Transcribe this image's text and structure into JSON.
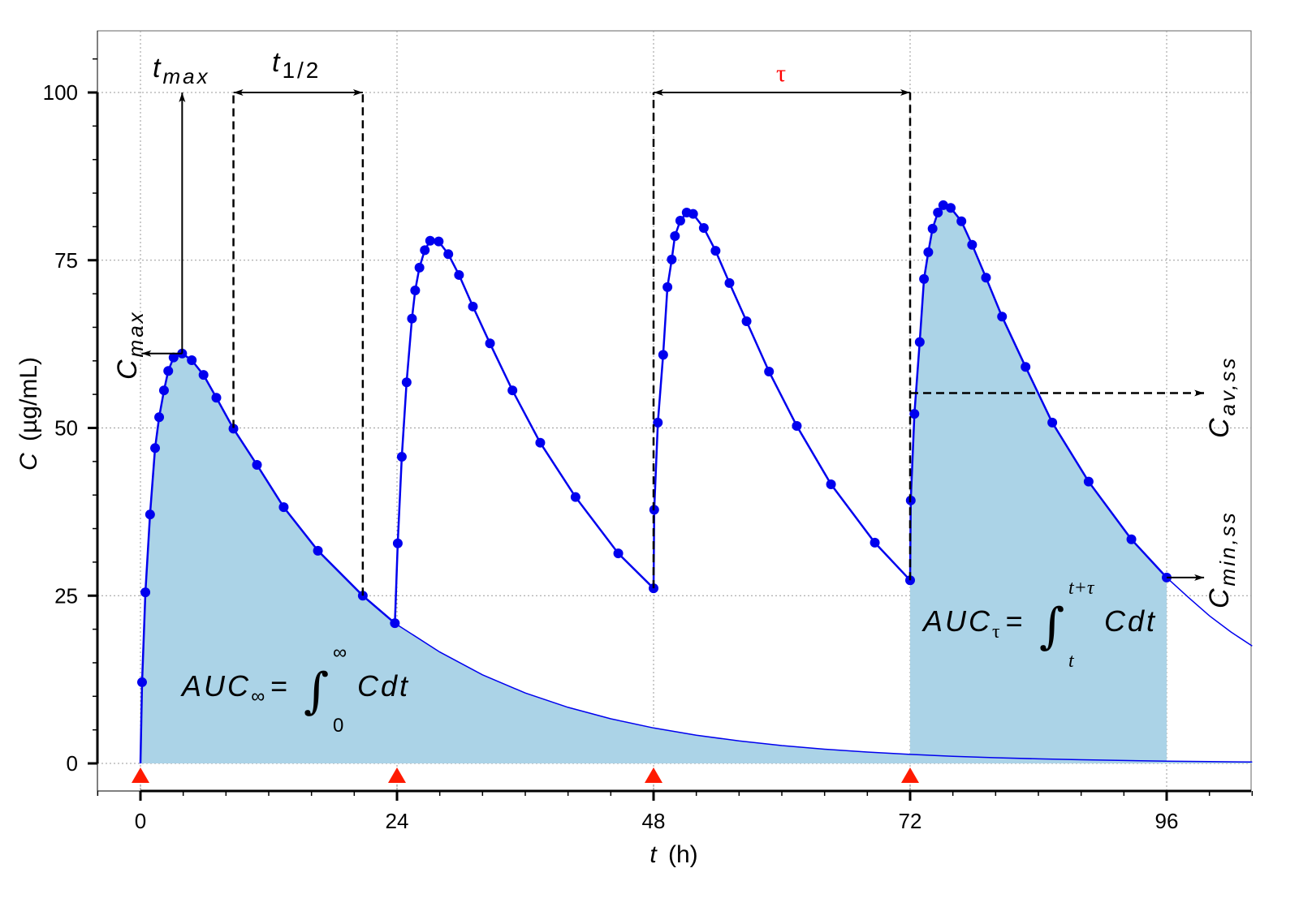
{
  "chart_data": {
    "type": "line",
    "xlabel": {
      "var": "t",
      "unit": "(h)"
    },
    "ylabel": {
      "var": "C",
      "unit": "(µg/mL)"
    },
    "xlim": [
      -4,
      104
    ],
    "ylim": [
      -4,
      109
    ],
    "xticks": [
      0,
      24,
      48,
      72,
      96
    ],
    "xtick_labels": [
      "0",
      "24",
      "48",
      "72",
      "96"
    ],
    "yticks": [
      0,
      25,
      50,
      75,
      100
    ],
    "ytick_labels": [
      "0",
      "25",
      "50",
      "75",
      "100"
    ],
    "grid": true,
    "colors": {
      "line": "#0000ee",
      "marker": "#0000ee",
      "fill": "#abd3e7",
      "dose": "#ff1a00",
      "tau_label": "#ff0000"
    },
    "dose_times": [
      0,
      24,
      48,
      72
    ],
    "series": [
      {
        "points": [
          [
            0,
            0
          ],
          [
            0.15,
            12.1
          ],
          [
            0.46,
            25.5
          ],
          [
            0.9,
            37.1
          ],
          [
            1.37,
            47
          ],
          [
            1.75,
            51.6
          ],
          [
            2.2,
            55.6
          ],
          [
            2.6,
            58.5
          ],
          [
            3.1,
            60.5
          ],
          [
            3.9,
            61.1
          ],
          [
            4.8,
            60.1
          ],
          [
            5.9,
            57.9
          ],
          [
            7.1,
            54.5
          ],
          [
            8.7,
            49.9
          ],
          [
            10.9,
            44.5
          ],
          [
            13.4,
            38.2
          ],
          [
            16.6,
            31.7
          ],
          [
            20.8,
            25
          ],
          [
            23.8,
            20.9
          ]
        ]
      },
      {
        "points": [
          [
            23.8,
            20.9
          ],
          [
            24.07,
            32.8
          ],
          [
            24.45,
            45.7
          ],
          [
            24.9,
            56.8
          ],
          [
            25.4,
            66.3
          ],
          [
            25.7,
            70.5
          ],
          [
            26.1,
            73.9
          ],
          [
            26.6,
            76.5
          ],
          [
            27.1,
            77.9
          ],
          [
            27.9,
            77.8
          ],
          [
            28.8,
            75.9
          ],
          [
            29.8,
            72.8
          ],
          [
            31.1,
            68.1
          ],
          [
            32.7,
            62.6
          ],
          [
            34.8,
            55.6
          ],
          [
            37.4,
            47.8
          ],
          [
            40.7,
            39.7
          ],
          [
            44.7,
            31.3
          ],
          [
            48,
            26.1
          ]
        ]
      },
      {
        "points": [
          [
            48,
            26.1
          ],
          [
            48.06,
            37.8
          ],
          [
            48.4,
            50.8
          ],
          [
            48.9,
            60.9
          ],
          [
            49.3,
            71
          ],
          [
            49.7,
            75.1
          ],
          [
            50,
            78.6
          ],
          [
            50.5,
            80.9
          ],
          [
            51.1,
            82.1
          ],
          [
            51.7,
            81.9
          ],
          [
            52.7,
            79.8
          ],
          [
            53.8,
            76.4
          ],
          [
            55.1,
            71.6
          ],
          [
            56.7,
            65.9
          ],
          [
            58.8,
            58.4
          ],
          [
            61.4,
            50.3
          ],
          [
            64.6,
            41.6
          ],
          [
            68.7,
            32.9
          ],
          [
            72,
            27.3
          ]
        ]
      },
      {
        "points": [
          [
            72,
            27.3
          ],
          [
            72.06,
            39.2
          ],
          [
            72.4,
            52.1
          ],
          [
            72.9,
            62.8
          ],
          [
            73.3,
            72.2
          ],
          [
            73.7,
            76.2
          ],
          [
            74.1,
            79.7
          ],
          [
            74.6,
            82.1
          ],
          [
            75.1,
            83.2
          ],
          [
            75.8,
            82.8
          ],
          [
            76.8,
            80.8
          ],
          [
            77.8,
            77.3
          ],
          [
            79.1,
            72.4
          ],
          [
            80.6,
            66.6
          ],
          [
            82.8,
            59.1
          ],
          [
            85.3,
            50.8
          ],
          [
            88.7,
            42
          ],
          [
            92.7,
            33.4
          ],
          [
            96,
            27.7
          ]
        ]
      }
    ],
    "single_dose_extrapolation": [
      [
        23.8,
        20.9
      ],
      [
        28,
        16.6
      ],
      [
        32,
        13.2
      ],
      [
        36,
        10.5
      ],
      [
        40,
        8.36
      ],
      [
        44,
        6.65
      ],
      [
        48,
        5.29
      ],
      [
        52,
        4.21
      ],
      [
        56,
        3.35
      ],
      [
        60,
        2.66
      ],
      [
        64,
        2.12
      ],
      [
        68,
        1.69
      ],
      [
        72,
        1.34
      ],
      [
        76,
        1.07
      ],
      [
        80,
        0.85
      ],
      [
        84,
        0.68
      ],
      [
        88,
        0.54
      ],
      [
        92,
        0.43
      ],
      [
        96,
        0.34
      ],
      [
        100,
        0.27
      ],
      [
        104,
        0.21
      ]
    ],
    "steady_state_extrapolation": [
      [
        96,
        27.7
      ],
      [
        98,
        24.8
      ],
      [
        100,
        22.0
      ],
      [
        102,
        19.6
      ],
      [
        104,
        17.5
      ]
    ],
    "annotations": {
      "tmax": {
        "base": "t",
        "sub": "max",
        "t": 3.9,
        "C": 61.1
      },
      "cmax": {
        "base": "C",
        "sub": "max",
        "C": 61.1
      },
      "half_life": {
        "base": "t",
        "sub": "1/2",
        "t_from": 8.7,
        "t_to": 20.8,
        "C_from": 50,
        "C_to": 25
      },
      "tau": {
        "label": "τ",
        "t_from": 48,
        "t_to": 72
      },
      "cav_ss": {
        "base": "C",
        "sub": "av,ss",
        "C": 55.2
      },
      "cmin_ss": {
        "base": "C",
        "sub": "min,ss",
        "C": 27.7
      },
      "auc_inf": {
        "lhs": "AUC",
        "sub": "∞",
        "eq": "=",
        "int": "∫",
        "lower": "0",
        "upper": "∞",
        "integrand": "Cdt"
      },
      "auc_tau": {
        "lhs": "AUC",
        "sub": "τ",
        "eq": "=",
        "int": "∫",
        "lower": "t",
        "upper": "t+τ",
        "integrand": "Cdt"
      }
    }
  }
}
